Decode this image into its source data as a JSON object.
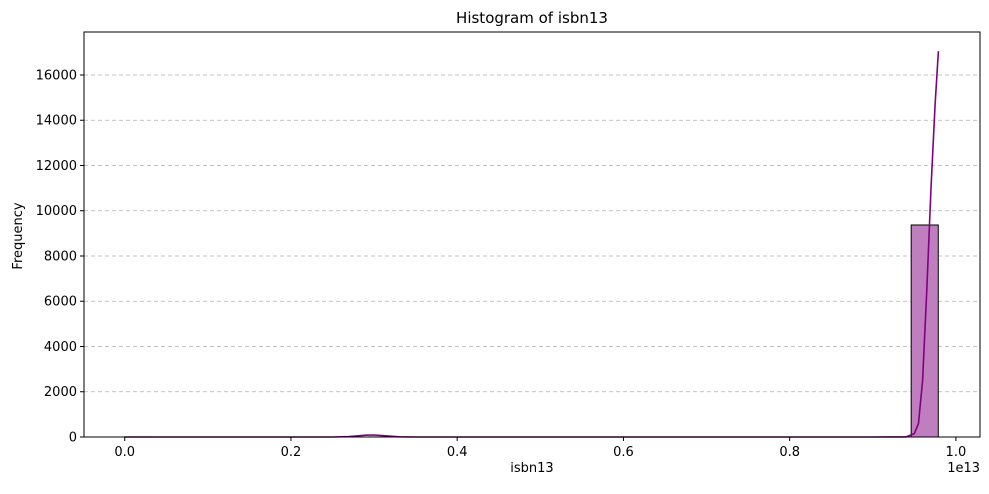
{
  "chart_data": {
    "type": "bar",
    "title": "Histogram of isbn13",
    "xlabel": "isbn13",
    "ylabel": "Frequency",
    "x_offset_label": "1e13",
    "xlim": [
      -0.049,
      1.029
    ],
    "ylim": [
      0,
      17900
    ],
    "x_ticks": [
      0.0,
      0.2,
      0.4,
      0.6,
      0.8,
      1.0
    ],
    "x_tick_labels": [
      "0.0",
      "0.2",
      "0.4",
      "0.6",
      "0.8",
      "1.0"
    ],
    "y_ticks": [
      0,
      2000,
      4000,
      6000,
      8000,
      10000,
      12000,
      14000,
      16000
    ],
    "y_tick_labels": [
      "0",
      "2000",
      "4000",
      "6000",
      "8000",
      "10000",
      "12000",
      "14000",
      "16000"
    ],
    "grid": "y-dashed",
    "bar_color": "#bf7fbf",
    "bar_edge_color": "#000000",
    "kde_color": "#800080",
    "bins": [
      {
        "x0": 0.0,
        "x1": 0.0326,
        "value": 1
      },
      {
        "x0": 0.2936,
        "x1": 0.3262,
        "value": 3
      },
      {
        "x0": 0.9462,
        "x1": 0.9788,
        "value": 9370
      }
    ],
    "kde": {
      "x": [
        0.0,
        0.05,
        0.1,
        0.15,
        0.2,
        0.25,
        0.27,
        0.29,
        0.3,
        0.31,
        0.33,
        0.35,
        0.4,
        0.5,
        0.6,
        0.7,
        0.8,
        0.9,
        0.94,
        0.95,
        0.955,
        0.96,
        0.965,
        0.97,
        0.975,
        0.979
      ],
      "y": [
        0,
        0,
        0,
        0,
        0,
        0,
        20,
        80,
        90,
        60,
        10,
        0,
        0,
        0,
        0,
        0,
        0,
        0,
        5,
        150,
        600,
        2500,
        6500,
        11000,
        14700,
        17050
      ]
    }
  }
}
